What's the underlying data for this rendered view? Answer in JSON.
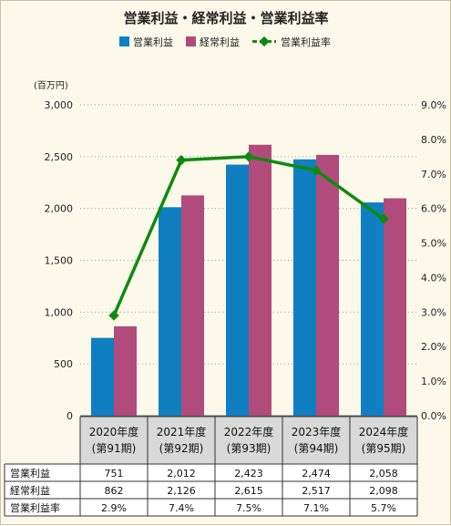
{
  "chart_data": {
    "type": "bar",
    "title": "営業利益・経常利益・営業利益率",
    "y_unit_label": "(百万円)",
    "ylim": [
      0,
      3000
    ],
    "y_ticks": [
      "0",
      "500",
      "1,000",
      "1,500",
      "2,000",
      "2,500",
      "3,000"
    ],
    "y2lim": [
      0.0,
      9.0
    ],
    "y2_ticks": [
      "0.0%",
      "1.0%",
      "2.0%",
      "3.0%",
      "4.0%",
      "5.0%",
      "6.0%",
      "7.0%",
      "8.0%",
      "9.0%"
    ],
    "grid": true,
    "legend_position": "top",
    "categories": [
      [
        "2020年度",
        "(第91期)"
      ],
      [
        "2021年度",
        "(第92期)"
      ],
      [
        "2022年度",
        "(第93期)"
      ],
      [
        "2023年度",
        "(第94期)"
      ],
      [
        "2024年度",
        "(第95期)"
      ]
    ],
    "series": [
      {
        "name": "営業利益",
        "type": "bar",
        "axis": "left",
        "color": "#0f7fc1",
        "values": [
          751,
          2012,
          2423,
          2474,
          2058
        ],
        "labels": [
          "751",
          "2,012",
          "2,423",
          "2,474",
          "2,058"
        ]
      },
      {
        "name": "経常利益",
        "type": "bar",
        "axis": "left",
        "color": "#b04b7c",
        "values": [
          862,
          2126,
          2615,
          2517,
          2098
        ],
        "labels": [
          "862",
          "2,126",
          "2,615",
          "2,517",
          "2,098"
        ]
      },
      {
        "name": "営業利益率",
        "type": "line",
        "axis": "right",
        "color": "#0e8a10",
        "values": [
          2.9,
          7.4,
          7.5,
          7.1,
          5.7
        ],
        "labels": [
          "2.9%",
          "7.4%",
          "7.5%",
          "7.1%",
          "5.7%"
        ]
      }
    ]
  }
}
